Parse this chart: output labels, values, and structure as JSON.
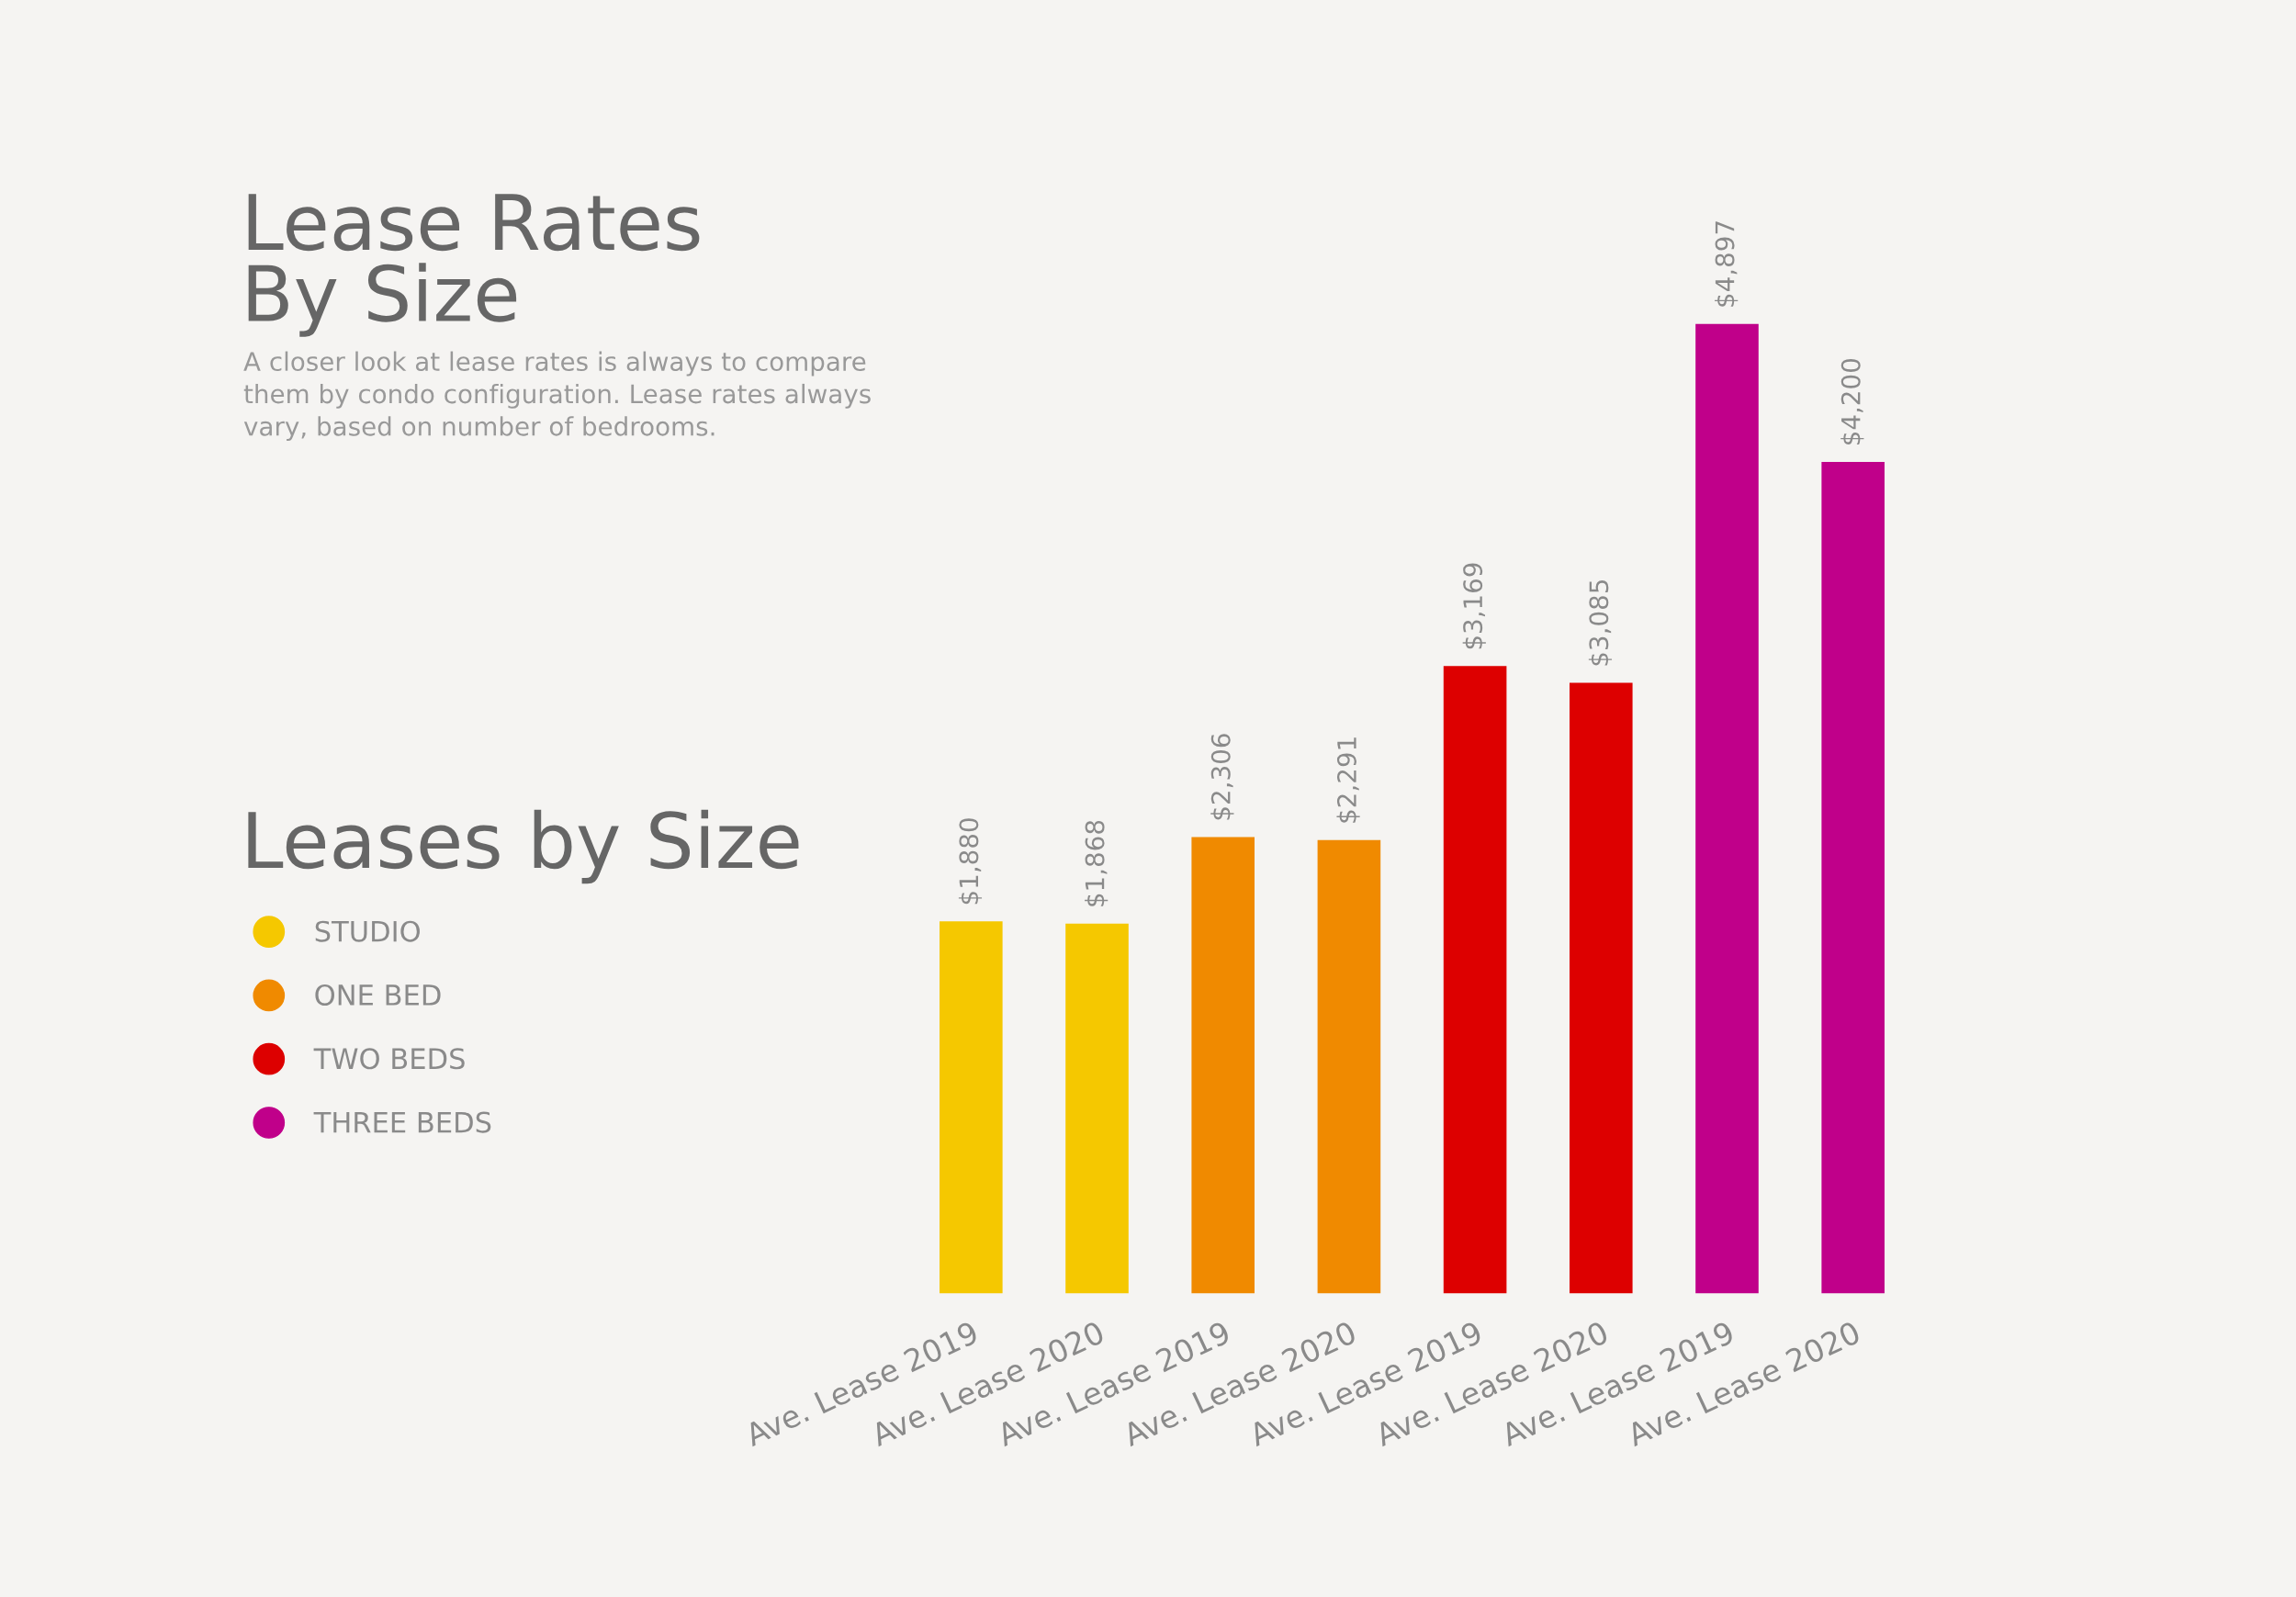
{
  "chart_data": {
    "type": "bar",
    "title": "Lease Rates\nBy Size",
    "subtitle": "A closer look at lease rates is always to compare\nthem by condo configuration. Lease rates always\nvary, based on number of bedrooms.",
    "legend_title": "Leases by Size",
    "categories": [
      "Ave. Lease 2019",
      "Ave. Lease 2020",
      "Ave. Lease 2019",
      "Ave. Lease 2020",
      "Ave. Lease 2019",
      "Ave. Lease 2020",
      "Ave. Lease 2019",
      "Ave. Lease 2020"
    ],
    "series": [
      {
        "name": "STUDIO",
        "color": "#f5c800",
        "values": [
          1880,
          1868,
          null,
          null,
          null,
          null,
          null,
          null
        ],
        "value_labels": [
          "$1,880",
          "$1,868",
          null,
          null,
          null,
          null,
          null,
          null
        ]
      },
      {
        "name": "ONE BED",
        "color": "#f08a00",
        "values": [
          null,
          null,
          2306,
          2291,
          null,
          null,
          null,
          null
        ],
        "value_labels": [
          null,
          null,
          "$2,306",
          "$2,291",
          null,
          null,
          null,
          null
        ]
      },
      {
        "name": "TWO BEDS",
        "color": "#dd0000",
        "values": [
          null,
          null,
          null,
          null,
          3169,
          3085,
          null,
          null
        ],
        "value_labels": [
          null,
          null,
          null,
          null,
          "$3,169",
          "$3,085",
          null,
          null
        ]
      },
      {
        "name": "THREE BEDS",
        "color": "#c0008a",
        "values": [
          null,
          null,
          null,
          null,
          null,
          null,
          4897,
          4200
        ],
        "value_labels": [
          null,
          null,
          null,
          null,
          null,
          null,
          "$4,897",
          "$4,200"
        ]
      }
    ],
    "legend": "left",
    "grid": false
  }
}
